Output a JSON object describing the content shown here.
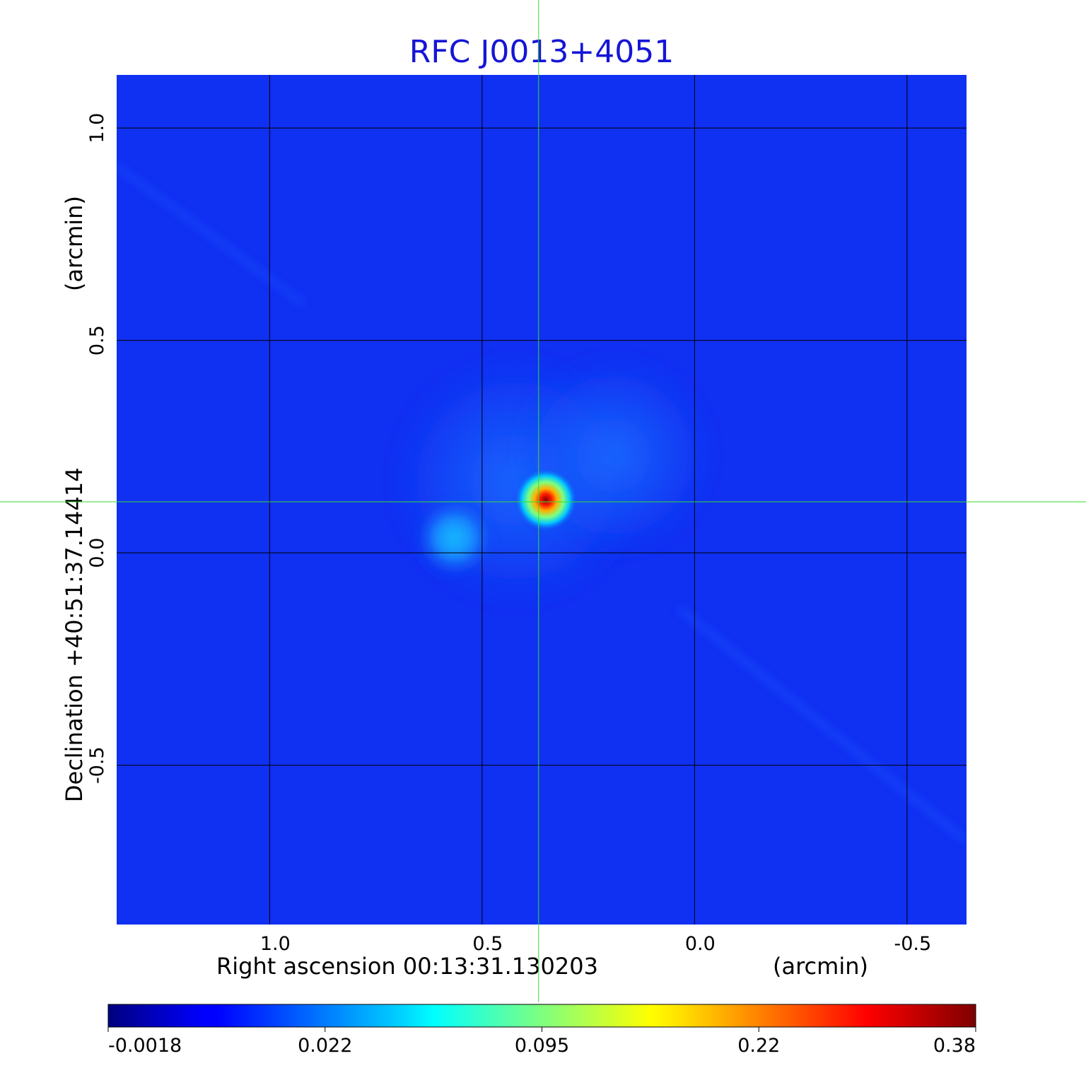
{
  "chart_data": {
    "type": "heatmap",
    "title": "RFC J0013+4051",
    "title_color": "#1515d6",
    "xlabel": "Right ascension  00:13:31.130203",
    "xlabel_unit": "(arcmin)",
    "ylabel": "Declination  +40:51:37.14414",
    "ylabel_unit": "(arcmin)",
    "xlim": [
      1.36,
      -0.64
    ],
    "ylim": [
      -0.875,
      1.125
    ],
    "xticks": [
      1.0,
      0.5,
      0.0,
      -0.5
    ],
    "xtick_labels": [
      "1.0",
      "0.5",
      "0.0",
      "-0.5"
    ],
    "yticks": [
      1.0,
      0.5,
      0.0,
      -0.5
    ],
    "ytick_labels": [
      "1.0",
      "0.5",
      "0.0",
      "-0.5"
    ],
    "grid": true,
    "grid_color": "#000000",
    "crosshair": {
      "x": 0.367,
      "y": 0.12,
      "color": "#33dd33"
    },
    "colormap": "jet",
    "background_color": "#1030f2",
    "colorbar": {
      "position": "bottom",
      "ticks": [
        -0.0018,
        0.022,
        0.095,
        0.22,
        0.38
      ],
      "tick_labels": [
        "-0.0018",
        "0.022",
        "0.095",
        "0.22",
        "0.38"
      ]
    },
    "features": [
      {
        "kind": "core",
        "x": 0.35,
        "y": 0.125,
        "peak": 0.38
      },
      {
        "kind": "knot",
        "x": 0.565,
        "y": 0.035,
        "peak": 0.045
      },
      {
        "kind": "diffuse-lobe",
        "x": 0.19,
        "y": 0.23,
        "peak": 0.018
      },
      {
        "kind": "diffuse-halo",
        "x": 0.42,
        "y": 0.17,
        "peak": 0.012
      }
    ]
  }
}
